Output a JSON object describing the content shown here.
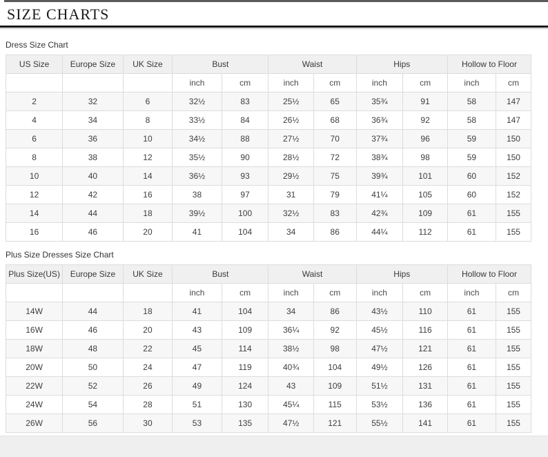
{
  "page": {
    "title": "SIZE CHARTS"
  },
  "tables": [
    {
      "label": "Dress Size Chart",
      "col_headers": [
        "US Size",
        "Europe Size",
        "UK Size"
      ],
      "group_headers": [
        "Bust",
        "Waist",
        "Hips",
        "Hollow to Floor"
      ],
      "unit_headers": [
        "inch",
        "cm"
      ],
      "rows": [
        [
          "2",
          "32",
          "6",
          "32½",
          "83",
          "25½",
          "65",
          "35¾",
          "91",
          "58",
          "147"
        ],
        [
          "4",
          "34",
          "8",
          "33½",
          "84",
          "26½",
          "68",
          "36¾",
          "92",
          "58",
          "147"
        ],
        [
          "6",
          "36",
          "10",
          "34½",
          "88",
          "27½",
          "70",
          "37¾",
          "96",
          "59",
          "150"
        ],
        [
          "8",
          "38",
          "12",
          "35½",
          "90",
          "28½",
          "72",
          "38¾",
          "98",
          "59",
          "150"
        ],
        [
          "10",
          "40",
          "14",
          "36½",
          "93",
          "29½",
          "75",
          "39¾",
          "101",
          "60",
          "152"
        ],
        [
          "12",
          "42",
          "16",
          "38",
          "97",
          "31",
          "79",
          "41¼",
          "105",
          "60",
          "152"
        ],
        [
          "14",
          "44",
          "18",
          "39½",
          "100",
          "32½",
          "83",
          "42¾",
          "109",
          "61",
          "155"
        ],
        [
          "16",
          "46",
          "20",
          "41",
          "104",
          "34",
          "86",
          "44¼",
          "112",
          "61",
          "155"
        ]
      ]
    },
    {
      "label": "Plus Size Dresses Size Chart",
      "col_headers": [
        "Plus Size(US)",
        "Europe Size",
        "UK Size"
      ],
      "group_headers": [
        "Bust",
        "Waist",
        "Hips",
        "Hollow to Floor"
      ],
      "unit_headers": [
        "inch",
        "cm"
      ],
      "rows": [
        [
          "14W",
          "44",
          "18",
          "41",
          "104",
          "34",
          "86",
          "43½",
          "110",
          "61",
          "155"
        ],
        [
          "16W",
          "46",
          "20",
          "43",
          "109",
          "36¼",
          "92",
          "45½",
          "116",
          "61",
          "155"
        ],
        [
          "18W",
          "48",
          "22",
          "45",
          "114",
          "38½",
          "98",
          "47½",
          "121",
          "61",
          "155"
        ],
        [
          "20W",
          "50",
          "24",
          "47",
          "119",
          "40¾",
          "104",
          "49½",
          "126",
          "61",
          "155"
        ],
        [
          "22W",
          "52",
          "26",
          "49",
          "124",
          "43",
          "109",
          "51½",
          "131",
          "61",
          "155"
        ],
        [
          "24W",
          "54",
          "28",
          "51",
          "130",
          "45¼",
          "115",
          "53½",
          "136",
          "61",
          "155"
        ],
        [
          "26W",
          "56",
          "30",
          "53",
          "135",
          "47½",
          "121",
          "55½",
          "141",
          "61",
          "155"
        ]
      ]
    }
  ]
}
